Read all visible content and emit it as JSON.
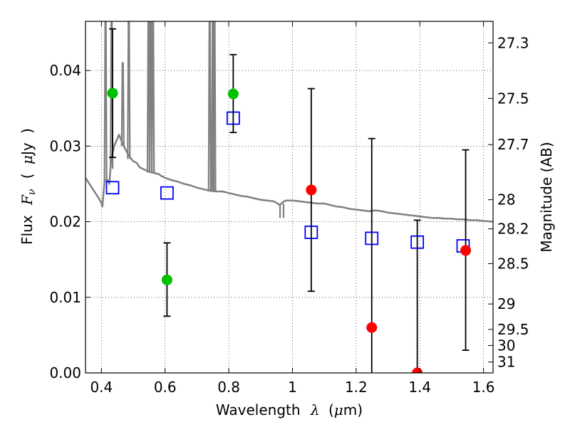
{
  "chart_data": {
    "type": "scatter",
    "xlabel": {
      "prefix": "Wavelength",
      "symbol": "λ",
      "unit_open": "(",
      "unit_mu": "μ",
      "unit_rest": "m)"
    },
    "ylabel": {
      "prefix": "Flux",
      "symbol": "F",
      "subscript": "ν",
      "unit_open": "(",
      "unit_mu": "μ",
      "unit_rest": "Jy",
      "unit_close": ")"
    },
    "y2label": "Magnitude (AB)",
    "xlim": [
      0.35,
      1.63
    ],
    "ylim": [
      0.0,
      0.0465
    ],
    "grid": true,
    "x_ticks": [
      {
        "value": 0.4,
        "label": "0.4"
      },
      {
        "value": 0.6,
        "label": "0.6"
      },
      {
        "value": 0.8,
        "label": "0.8"
      },
      {
        "value": 1.0,
        "label": "1"
      },
      {
        "value": 1.2,
        "label": "1.2"
      },
      {
        "value": 1.4,
        "label": "1.4"
      },
      {
        "value": 1.6,
        "label": "1.6"
      }
    ],
    "y_ticks": [
      {
        "value": 0.0,
        "label": "0.00"
      },
      {
        "value": 0.01,
        "label": "0.01"
      },
      {
        "value": 0.02,
        "label": "0.02"
      },
      {
        "value": 0.03,
        "label": "0.03"
      },
      {
        "value": 0.04,
        "label": "0.04"
      }
    ],
    "mag_ticks": [
      {
        "mag": 27.3,
        "label": "27.3"
      },
      {
        "mag": 27.5,
        "label": "27.5"
      },
      {
        "mag": 27.7,
        "label": "27.7"
      },
      {
        "mag": 28.0,
        "label": "28"
      },
      {
        "mag": 28.2,
        "label": "28.2"
      },
      {
        "mag": 28.5,
        "label": "28.5"
      },
      {
        "mag": 29.0,
        "label": "29"
      },
      {
        "mag": 29.5,
        "label": "29.5"
      },
      {
        "mag": 30.0,
        "label": "30"
      },
      {
        "mag": 31.0,
        "label": "31"
      }
    ],
    "model_spectrum": {
      "name": "model",
      "color": "#808080",
      "points": [
        [
          0.35,
          0.0258
        ],
        [
          0.37,
          0.0245
        ],
        [
          0.39,
          0.0232
        ],
        [
          0.4,
          0.0225
        ],
        [
          0.403,
          0.022
        ],
        [
          0.41,
          0.0255
        ],
        [
          0.42,
          0.0255
        ],
        [
          0.425,
          0.025
        ],
        [
          0.43,
          0.028
        ],
        [
          0.44,
          0.03
        ],
        [
          0.445,
          0.0305
        ],
        [
          0.45,
          0.031
        ],
        [
          0.455,
          0.0315
        ],
        [
          0.46,
          0.031
        ],
        [
          0.47,
          0.03
        ],
        [
          0.48,
          0.0292
        ],
        [
          0.49,
          0.0285
        ],
        [
          0.5,
          0.028
        ],
        [
          0.51,
          0.0278
        ],
        [
          0.52,
          0.0272
        ],
        [
          0.53,
          0.027
        ],
        [
          0.54,
          0.0268
        ],
        [
          0.55,
          0.0266
        ],
        [
          0.57,
          0.0264
        ],
        [
          0.58,
          0.0263
        ],
        [
          0.59,
          0.026
        ],
        [
          0.6,
          0.0258
        ],
        [
          0.62,
          0.0255
        ],
        [
          0.64,
          0.0253
        ],
        [
          0.66,
          0.025
        ],
        [
          0.68,
          0.0248
        ],
        [
          0.7,
          0.0245
        ],
        [
          0.72,
          0.0243
        ],
        [
          0.74,
          0.0241
        ],
        [
          0.76,
          0.024
        ],
        [
          0.78,
          0.024
        ],
        [
          0.8,
          0.0238
        ],
        [
          0.82,
          0.0236
        ],
        [
          0.84,
          0.0234
        ],
        [
          0.86,
          0.0233
        ],
        [
          0.88,
          0.0231
        ],
        [
          0.9,
          0.0229
        ],
        [
          0.92,
          0.0228
        ],
        [
          0.94,
          0.0227
        ],
        [
          0.95,
          0.0225
        ],
        [
          0.96,
          0.0222
        ],
        [
          0.97,
          0.0226
        ],
        [
          0.98,
          0.0228
        ],
        [
          1.0,
          0.0228
        ],
        [
          1.02,
          0.0227
        ],
        [
          1.04,
          0.0226
        ],
        [
          1.06,
          0.0225
        ],
        [
          1.08,
          0.0224
        ],
        [
          1.1,
          0.0224
        ],
        [
          1.12,
          0.0222
        ],
        [
          1.14,
          0.022
        ],
        [
          1.16,
          0.0219
        ],
        [
          1.18,
          0.0217
        ],
        [
          1.2,
          0.0216
        ],
        [
          1.22,
          0.0215
        ],
        [
          1.24,
          0.0214
        ],
        [
          1.26,
          0.0215
        ],
        [
          1.28,
          0.0214
        ],
        [
          1.3,
          0.0212
        ],
        [
          1.32,
          0.0211
        ],
        [
          1.34,
          0.021
        ],
        [
          1.36,
          0.0209
        ],
        [
          1.38,
          0.0208
        ],
        [
          1.4,
          0.0207
        ],
        [
          1.42,
          0.0206
        ],
        [
          1.44,
          0.0205
        ],
        [
          1.46,
          0.0205
        ],
        [
          1.48,
          0.0204
        ],
        [
          1.5,
          0.0204
        ],
        [
          1.52,
          0.0203
        ],
        [
          1.54,
          0.0203
        ],
        [
          1.56,
          0.0202
        ],
        [
          1.58,
          0.0202
        ],
        [
          1.6,
          0.0201
        ],
        [
          1.63,
          0.02
        ]
      ],
      "emission_lines": [
        {
          "x": 0.413,
          "peak": 0.0465,
          "base": 0.0252
        },
        {
          "x": 0.432,
          "peak": 0.0465,
          "base": 0.027
        },
        {
          "x": 0.467,
          "peak": 0.041,
          "base": 0.03
        },
        {
          "x": 0.486,
          "peak": 0.0465,
          "base": 0.0283
        },
        {
          "x": 0.548,
          "peak": 0.0465,
          "base": 0.0265
        },
        {
          "x": 0.555,
          "peak": 0.0465,
          "base": 0.0265
        },
        {
          "x": 0.562,
          "peak": 0.0465,
          "base": 0.0265
        },
        {
          "x": 0.74,
          "peak": 0.0465,
          "base": 0.0241
        },
        {
          "x": 0.75,
          "peak": 0.0465,
          "base": 0.0241
        },
        {
          "x": 0.755,
          "peak": 0.0465,
          "base": 0.0241
        }
      ],
      "absorption_lines": [
        {
          "x": 0.961,
          "depth": 0.0205
        },
        {
          "x": 0.972,
          "depth": 0.0205
        }
      ]
    },
    "series": [
      {
        "kind": "model_photometry",
        "marker": "open-square",
        "color": "#0000ff",
        "points": [
          {
            "x": 0.435,
            "y": 0.0245
          },
          {
            "x": 0.606,
            "y": 0.0238
          },
          {
            "x": 0.814,
            "y": 0.0337
          },
          {
            "x": 1.059,
            "y": 0.0186
          },
          {
            "x": 1.249,
            "y": 0.0178
          },
          {
            "x": 1.392,
            "y": 0.0173
          },
          {
            "x": 1.536,
            "y": 0.0168
          }
        ]
      },
      {
        "kind": "detections",
        "marker": "filled-circle",
        "color": "#00c000",
        "points": [
          {
            "x": 0.435,
            "y": 0.037,
            "err_low": 0.0285,
            "err_high": 0.0455
          },
          {
            "x": 0.606,
            "y": 0.0123,
            "err_low": 0.0075,
            "err_high": 0.0172
          },
          {
            "x": 0.814,
            "y": 0.0369,
            "err_low": 0.0318,
            "err_high": 0.0421
          }
        ]
      },
      {
        "kind": "low_significance",
        "marker": "filled-circle",
        "color": "#ff0000",
        "points": [
          {
            "x": 1.059,
            "y": 0.0242,
            "err_low": 0.0108,
            "err_high": 0.0376
          },
          {
            "x": 1.249,
            "y": 0.006,
            "err_low": 0.0,
            "err_high": 0.031
          },
          {
            "x": 1.392,
            "y": 0.0,
            "err_low": 0.0,
            "err_high": 0.0202
          },
          {
            "x": 1.544,
            "y": 0.0162,
            "err_low": 0.003,
            "err_high": 0.0295
          }
        ]
      }
    ]
  }
}
